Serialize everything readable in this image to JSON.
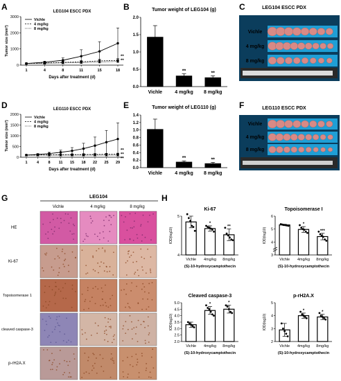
{
  "colors": {
    "bar_fill": "#000000",
    "photo_bg": "#1f9fd6",
    "photo_frame": "#0b3d5c",
    "tumor": "#d88a86",
    "he_stain": "#d25aa4",
    "ihc_bg": "#e7cfc2",
    "ihc_brown": "#8a4522",
    "ihc_blue": "#8e86b6"
  },
  "panels": {
    "A": "A",
    "B": "B",
    "C": "C",
    "D": "D",
    "E": "E",
    "F": "F",
    "G": "G",
    "H": "H"
  },
  "photoC": {
    "title": "LEG104 ESCC PDX",
    "rows": [
      "Vichle",
      "4 mg/kg",
      "8 mg/kg"
    ],
    "counts": [
      8,
      9,
      8
    ]
  },
  "photoF": {
    "title": "LEG110 ESCC PDX",
    "rows": [
      "Vichle",
      "4 mg/kg",
      "8 mg/kg"
    ],
    "counts": [
      8,
      9,
      9
    ]
  },
  "panelG": {
    "group": "LEG104",
    "columns": [
      "Vichle",
      "4 mg/kg",
      "8 mg/kg"
    ],
    "rows": [
      "HE",
      "Ki-67",
      "Topoisomerase 1",
      "cleaved caspase-3",
      "p-rH2A.X"
    ]
  },
  "chart_data": [
    {
      "id": "A",
      "type": "line",
      "title": "LEG104 ESCC PDX",
      "xlabel": "Days after treatment (d)",
      "ylabel": "Tumor size (mm³)",
      "x": [
        1,
        4,
        8,
        11,
        15,
        18
      ],
      "ylim": [
        0,
        3000
      ],
      "yticks": [
        0,
        1000,
        2000,
        3000
      ],
      "series": [
        {
          "name": "Vichle",
          "values": [
            100,
            180,
            300,
            550,
            850,
            1350
          ],
          "err": [
            20,
            60,
            150,
            400,
            600,
            950
          ]
        },
        {
          "name": "4 mg/kg",
          "values": [
            100,
            130,
            170,
            200,
            260,
            290
          ],
          "err": [
            20,
            40,
            60,
            80,
            100,
            120
          ]
        },
        {
          "name": "8 mg/kg",
          "values": [
            100,
            110,
            140,
            160,
            190,
            230
          ],
          "err": [
            20,
            30,
            50,
            60,
            70,
            90
          ]
        }
      ],
      "annotations": [
        "**",
        "**"
      ]
    },
    {
      "id": "B",
      "type": "bar",
      "title": "Tumor weight of LEG104 (g)",
      "categories": [
        "Vichle",
        "4 mg/kg",
        "8 mg/kg"
      ],
      "values": [
        1.43,
        0.31,
        0.26
      ],
      "err": [
        0.33,
        0.06,
        0.05
      ],
      "sig": [
        "",
        "**",
        "**"
      ],
      "ylim": [
        0,
        2.0
      ],
      "yticks": [
        "0.0",
        "0.5",
        "1.0",
        "1.5",
        "2.0"
      ]
    },
    {
      "id": "D",
      "type": "line",
      "title": "LEG110 ESCC PDX",
      "xlabel": "Days after treatment (d)",
      "ylabel": "Tumor size (mm³)",
      "x": [
        1,
        4,
        8,
        11,
        15,
        18,
        22,
        25,
        29
      ],
      "ylim": [
        0,
        2000
      ],
      "yticks": [
        0,
        500,
        1000,
        1500,
        2000
      ],
      "series": [
        {
          "name": "Vichle",
          "values": [
            100,
            130,
            170,
            230,
            300,
            400,
            540,
            700,
            850
          ],
          "err": [
            20,
            40,
            60,
            100,
            150,
            250,
            400,
            550,
            750
          ]
        },
        {
          "name": "4 mg/kg",
          "values": [
            100,
            105,
            110,
            115,
            120,
            125,
            130,
            135,
            140
          ],
          "err": [
            20,
            25,
            30,
            30,
            35,
            40,
            40,
            45,
            50
          ]
        },
        {
          "name": "8 mg/kg",
          "values": [
            100,
            100,
            100,
            100,
            100,
            100,
            100,
            100,
            100
          ],
          "err": [
            15,
            20,
            20,
            20,
            25,
            25,
            25,
            30,
            30
          ]
        }
      ],
      "annotations": [
        "**",
        "**",
        "**"
      ]
    },
    {
      "id": "E",
      "type": "bar",
      "title": "Tumor weight of LEG110 (g)",
      "categories": [
        "Vichle",
        "4 mg/kg",
        "8 mg/kg"
      ],
      "values": [
        1.02,
        0.15,
        0.11
      ],
      "err": [
        0.27,
        0.03,
        0.03
      ],
      "sig": [
        "",
        "**",
        "**"
      ],
      "ylim": [
        0,
        1.4
      ],
      "yticks": [
        "0.0",
        "0.2",
        "0.4",
        "0.6",
        "0.8",
        "1.0",
        "1.2",
        "1.4"
      ]
    },
    {
      "id": "H1",
      "type": "bar",
      "title": "Ki-67",
      "categories": [
        "Vichle",
        "4mg/kg",
        "8mg/kg"
      ],
      "values": [
        4.85,
        4.68,
        4.52
      ],
      "err": [
        0.15,
        0.07,
        0.15
      ],
      "sig": [
        "",
        "*",
        "**"
      ],
      "ylim": [
        4.0,
        5.0
      ],
      "yticks": [
        "4",
        "5"
      ],
      "points": [
        [
          5.05,
          4.95,
          4.88,
          4.75,
          4.72,
          4.62
        ],
        [
          4.75,
          4.72,
          4.7,
          4.68,
          4.65,
          4.6
        ],
        [
          4.7,
          4.55,
          4.5,
          4.45,
          4.4,
          4.38
        ]
      ],
      "ylabel": "IOD(log10)",
      "xlabel": "(S)-10-hydroxycamptothecin"
    },
    {
      "id": "H2",
      "type": "bar",
      "title": "Topoisomerase I",
      "categories": [
        "Vichle",
        "4mg/kg",
        "8mg/kg"
      ],
      "values": [
        5.32,
        4.97,
        4.42
      ],
      "err": [
        0.05,
        0.22,
        0.25
      ],
      "sig": [
        "",
        "*",
        "***"
      ],
      "ylim": [
        3.0,
        6.0
      ],
      "yticks": [
        "3",
        "4",
        "5",
        "6"
      ],
      "axis_break": true,
      "points": [
        [
          5.38,
          5.35,
          5.32,
          5.3,
          5.28,
          5.25
        ],
        [
          5.3,
          5.1,
          5.0,
          4.95,
          4.8,
          4.7
        ],
        [
          4.8,
          4.6,
          4.5,
          4.4,
          4.2,
          4.1
        ]
      ],
      "ylabel": "IOD(log10)",
      "xlabel": "(S)-10-hydroxycamptothecin"
    },
    {
      "id": "H3",
      "type": "bar",
      "title": "Cleaved caspase-3",
      "categories": [
        "Vichle",
        "4mg/kg",
        "8mg/kg"
      ],
      "values": [
        3.3,
        4.4,
        4.5
      ],
      "err": [
        0.2,
        0.3,
        0.3
      ],
      "sig": [
        "",
        "*",
        "*"
      ],
      "ylim": [
        2.0,
        5.0
      ],
      "yticks": [
        "2.0",
        "2.5",
        "3.0",
        "3.5",
        "4.0",
        "4.5",
        "5.0"
      ],
      "points": [
        [
          3.5,
          3.4,
          3.3,
          3.2,
          3.1
        ],
        [
          4.8,
          4.6,
          4.5,
          4.3,
          4.1,
          4.0
        ],
        [
          4.8,
          4.7,
          4.5,
          4.3,
          4.2
        ]
      ],
      "ylabel": "IOD(log10)",
      "xlabel": "(S)-10-hydroxycamptothecin"
    },
    {
      "id": "H4",
      "type": "bar",
      "title": "p-rH2A.X",
      "categories": [
        "Vichle",
        "4mg/kg",
        "8mg/kg"
      ],
      "values": [
        2.9,
        4.0,
        3.9
      ],
      "err": [
        0.5,
        0.2,
        0.2
      ],
      "sig": [
        "",
        "*",
        "*"
      ],
      "ylim": [
        2.0,
        5.0
      ],
      "yticks": [
        "2",
        "3",
        "4",
        "5"
      ],
      "points": [
        [
          3.4,
          3.0,
          2.8,
          2.6,
          2.4
        ],
        [
          4.3,
          4.1,
          4.0,
          3.9,
          3.8
        ],
        [
          4.2,
          4.0,
          3.9,
          3.8,
          3.7
        ]
      ],
      "ylabel": "IOD(log10)",
      "xlabel": "(S)-10-hydroxycamptothecin"
    }
  ]
}
